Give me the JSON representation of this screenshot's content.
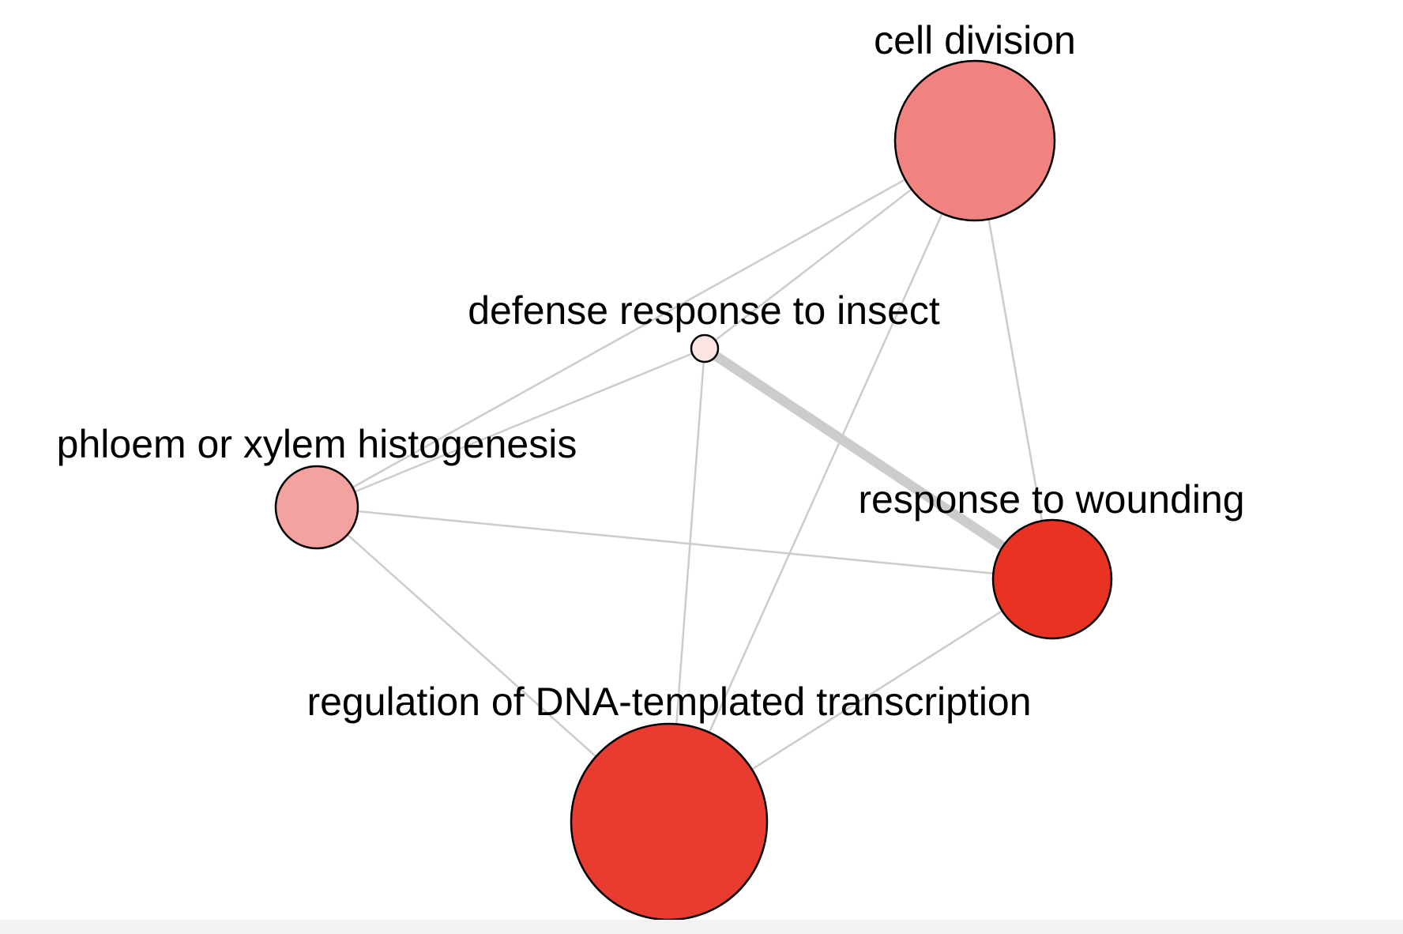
{
  "network": {
    "nodes": [
      {
        "id": "cell_division",
        "label": "cell division",
        "color": "#f08380"
      },
      {
        "id": "defense_response_to_insect",
        "label": "defense response to insect",
        "color": "#fde5e3"
      },
      {
        "id": "phloem_or_xylem_histogenesis",
        "label": "phloem or xylem histogenesis",
        "color": "#f3a29f"
      },
      {
        "id": "response_to_wounding",
        "label": "response to wounding",
        "color": "#e83323"
      },
      {
        "id": "regulation_of_dna_templated_transcription",
        "label": "regulation of DNA-templated transcription",
        "color": "#e83c30"
      }
    ],
    "edges": [
      {
        "source": "cell_division",
        "target": "phloem_or_xylem_histogenesis",
        "weight": 1
      },
      {
        "source": "cell_division",
        "target": "defense_response_to_insect",
        "weight": 1
      },
      {
        "source": "cell_division",
        "target": "regulation_of_dna_templated_transcription",
        "weight": 1
      },
      {
        "source": "cell_division",
        "target": "response_to_wounding",
        "weight": 1
      },
      {
        "source": "defense_response_to_insect",
        "target": "phloem_or_xylem_histogenesis",
        "weight": 1
      },
      {
        "source": "defense_response_to_insect",
        "target": "regulation_of_dna_templated_transcription",
        "weight": 1
      },
      {
        "source": "defense_response_to_insect",
        "target": "response_to_wounding",
        "weight": 5
      },
      {
        "source": "phloem_or_xylem_histogenesis",
        "target": "response_to_wounding",
        "weight": 1
      },
      {
        "source": "phloem_or_xylem_histogenesis",
        "target": "regulation_of_dna_templated_transcription",
        "weight": 1
      },
      {
        "source": "response_to_wounding",
        "target": "regulation_of_dna_templated_transcription",
        "weight": 1
      }
    ]
  }
}
